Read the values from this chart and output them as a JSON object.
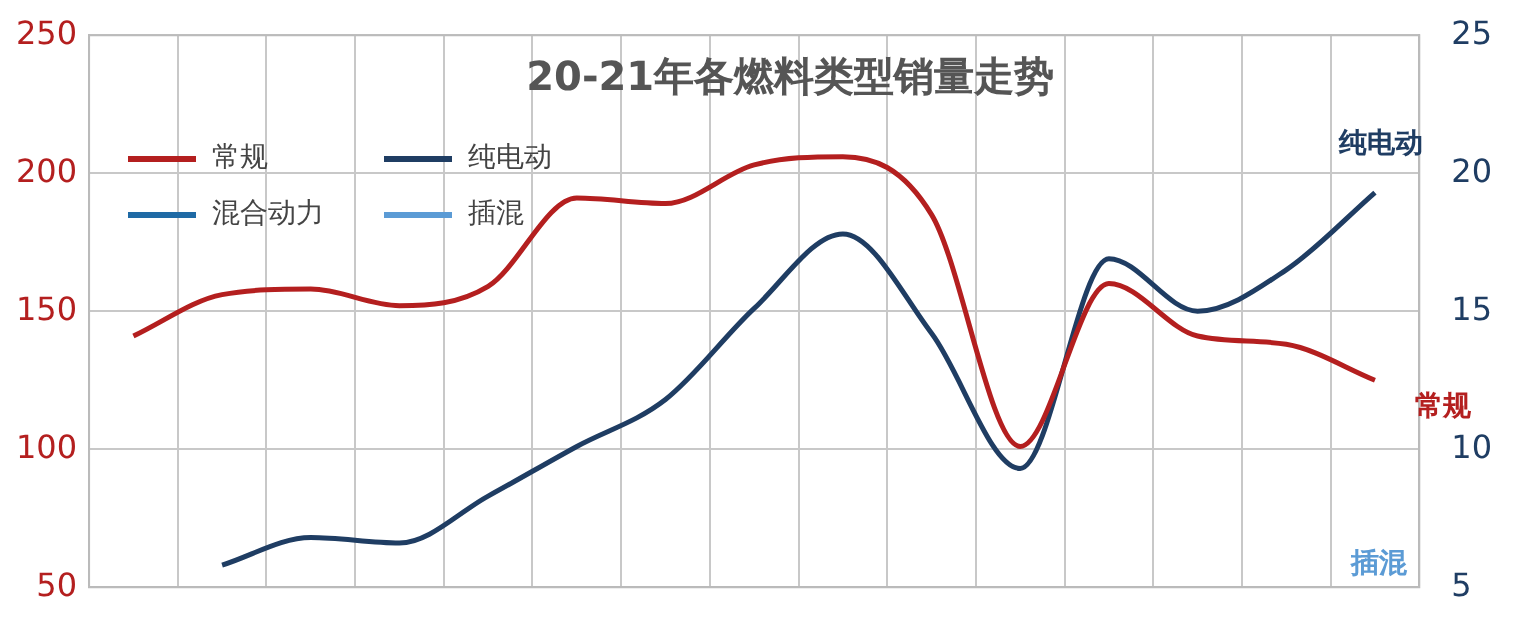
{
  "chart_data": {
    "type": "line",
    "title": "20-21年各燃料类型销量走势",
    "categories": [
      null,
      null,
      null,
      null,
      null,
      null,
      null,
      null,
      null,
      null,
      null,
      null,
      null,
      null,
      null
    ],
    "series": [
      {
        "name": "常规",
        "color": "#b41f1f",
        "values": [
          141,
          156,
          158,
          152,
          159,
          191,
          189,
          203,
          206,
          185,
          101,
          160,
          141,
          138,
          125
        ]
      },
      {
        "name": "纯电动",
        "color": "#1f3d63",
        "axis": "y2",
        "values": [
          null,
          5.8,
          6.8,
          6.6,
          8.3,
          10.1,
          11.8,
          15.1,
          17.8,
          14.2,
          9.3,
          16.9,
          15.0,
          16.5,
          19.3
        ]
      },
      {
        "name": "混合动力",
        "color": "#1f6aa5",
        "axis": "y2",
        "values": [
          null,
          null,
          null,
          null,
          null,
          null,
          null,
          null,
          null,
          null,
          null,
          null,
          null,
          null,
          null
        ]
      },
      {
        "name": "插混",
        "color": "#5b9bd5",
        "axis": "y2",
        "values": [
          null,
          null,
          null,
          null,
          null,
          null,
          null,
          null,
          null,
          null,
          null,
          null,
          null,
          null,
          null
        ]
      }
    ],
    "annotations": [
      "插混"
    ],
    "ylim": [
      50,
      250
    ],
    "yticks": [
      50,
      100,
      150,
      200,
      250
    ],
    "y2lim": [
      5,
      25
    ],
    "y2ticks": [
      5,
      10,
      15,
      20,
      25
    ],
    "grid": true,
    "legend": "top left",
    "marker": "none",
    "line_style": "solid"
  }
}
